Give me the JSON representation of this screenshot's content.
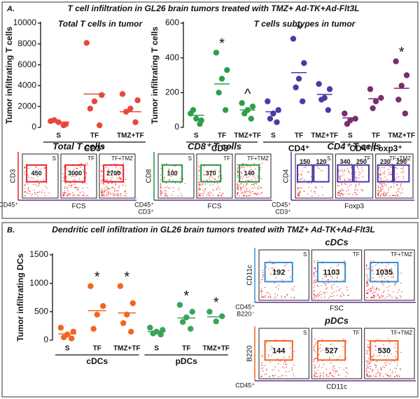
{
  "panels": [
    {
      "letter": "A.",
      "title": "T cell infiltration in GL26 brain tumors treated with TMZ+ Ad-TK+Ad-Flt3L"
    },
    {
      "letter": "B.",
      "title": "Dendritic cell infiltration in GL26 brain tumors treated with TMZ+ Ad-TK+Ad-Flt3L"
    }
  ],
  "chart_data": [
    {
      "type": "dot",
      "title": "Total T cells in tumor",
      "title_color": "#d9262e",
      "y_label": "Tumor infiltrating T cells",
      "ylim": [
        0,
        10000
      ],
      "yticks": [
        0,
        2000,
        4000,
        6000,
        8000,
        10000
      ],
      "categories": [
        "S",
        "TF",
        "TMZ+TF"
      ],
      "groups": [
        "CD3⁺"
      ],
      "colors": [
        "#e8473d"
      ],
      "points": [
        [
          600,
          300,
          500,
          700,
          200
        ],
        [
          8100,
          3100,
          2500,
          1800,
          200
        ],
        [
          3200,
          2600,
          1800,
          1500,
          500
        ]
      ],
      "means": [
        500,
        3200,
        1500
      ],
      "markers": [
        null,
        null,
        null
      ]
    },
    {
      "type": "dot",
      "title": "T cells subtypes in tumor",
      "title_color": "#222222",
      "y_label": "Tumor infiltrating T cells",
      "ylim": [
        0,
        600
      ],
      "yticks": [
        0,
        200,
        400,
        600
      ],
      "categories": [
        "S",
        "TF",
        "TMZ+TF",
        "S",
        "TF",
        "TMZ+TF",
        "S",
        "TF",
        "TMZ+TF"
      ],
      "groups": [
        "CD8⁺",
        "CD4⁺",
        "CD4⁺/Foxp3⁺"
      ],
      "colors": [
        "#2e9e4a",
        "#4b3aa6",
        "#7a2e6e"
      ],
      "points": [
        [
          80,
          40,
          50,
          100,
          20
        ],
        [
          430,
          330,
          280,
          200,
          100
        ],
        [
          140,
          120,
          100,
          80,
          50
        ],
        [
          150,
          100,
          80,
          50,
          30
        ],
        [
          510,
          370,
          280,
          230,
          150
        ],
        [
          250,
          220,
          170,
          160,
          100
        ],
        [
          80,
          50,
          40,
          20
        ],
        [
          220,
          170,
          150,
          110
        ],
        [
          380,
          300,
          240,
          160,
          80
        ]
      ],
      "means": [
        70,
        250,
        100,
        90,
        315,
        190,
        55,
        165,
        225
      ],
      "markers": [
        null,
        "*",
        "^",
        null,
        "*",
        null,
        null,
        null,
        "*"
      ]
    },
    {
      "type": "dot",
      "y_label": "Tumor infiltrating DCs",
      "ylim": [
        0,
        1500
      ],
      "yticks": [
        0,
        500,
        1000,
        1500
      ],
      "categories": [
        "S",
        "TF",
        "TMZ+TF",
        "S",
        "TF",
        "TMZ+TF"
      ],
      "groups": [
        "cDCs",
        "pDCs"
      ],
      "colors": [
        "#f26522",
        "#3aa35a"
      ],
      "points": [
        [
          220,
          150,
          100,
          50,
          30
        ],
        [
          950,
          600,
          450,
          200
        ],
        [
          950,
          650,
          450,
          300,
          150
        ],
        [
          220,
          180,
          150,
          120,
          100
        ],
        [
          620,
          500,
          400,
          320,
          200
        ],
        [
          500,
          420,
          330
        ]
      ],
      "means": [
        110,
        520,
        480,
        150,
        390,
        410
      ],
      "markers": [
        null,
        "*",
        "*",
        null,
        "*",
        "*"
      ]
    }
  ],
  "flow_panels": [
    {
      "title": "Total T cells",
      "title_color": "#e8232a",
      "color": "#e8232a",
      "y_label": "CD3",
      "x_label": "FCS",
      "gate_label": [
        "CD45⁺"
      ],
      "plots": [
        {
          "condition": "S",
          "counts": [
            450
          ]
        },
        {
          "condition": "TF",
          "counts": [
            3000
          ]
        },
        {
          "condition": "TF+TMZ",
          "counts": [
            2700
          ]
        }
      ]
    },
    {
      "title": "CD8⁺ T cells",
      "title_color": "#1f9a3e",
      "color": "#1f9a3e",
      "y_label": "CD8",
      "x_label": "FCS",
      "gate_label": [
        "CD45⁺",
        "CD3⁺"
      ],
      "plots": [
        {
          "condition": "S",
          "counts": [
            100
          ]
        },
        {
          "condition": "TF",
          "counts": [
            370
          ]
        },
        {
          "condition": "TF+TMZ",
          "counts": [
            140
          ]
        }
      ]
    },
    {
      "title": "CD4⁺ T cells",
      "title_color": "#4b3aa6",
      "color": "#4b3aa6",
      "y_label": "CD4",
      "x_label": "Foxp3",
      "gate_label": [
        "CD45⁺",
        "CD3⁺"
      ],
      "plots": [
        {
          "condition": "S",
          "counts": [
            150,
            120
          ]
        },
        {
          "condition": "TF",
          "counts": [
            340,
            250
          ]
        },
        {
          "condition": "TF+TMZ",
          "counts": [
            230,
            290
          ]
        }
      ]
    },
    {
      "title": "cDCs",
      "title_color": "#111111",
      "color": "#3a8fd1",
      "y_label": "CD11c",
      "x_label": "FSC",
      "gate_label": [
        "CD45⁺",
        "B220⁻"
      ],
      "plots": [
        {
          "condition": "S",
          "counts": [
            192
          ]
        },
        {
          "condition": "TF",
          "counts": [
            1103
          ]
        },
        {
          "condition": "TF+TMZ",
          "counts": [
            1035
          ]
        }
      ]
    },
    {
      "title": "pDCs",
      "title_color": "#111111",
      "color": "#f26522",
      "y_label": "B220",
      "x_label": "CD11c",
      "gate_label": [
        "CD45⁺"
      ],
      "plots": [
        {
          "condition": "S",
          "counts": [
            144
          ]
        },
        {
          "condition": "TF",
          "counts": [
            527
          ]
        },
        {
          "condition": "TF+TMZ",
          "counts": [
            530
          ]
        }
      ]
    }
  ]
}
